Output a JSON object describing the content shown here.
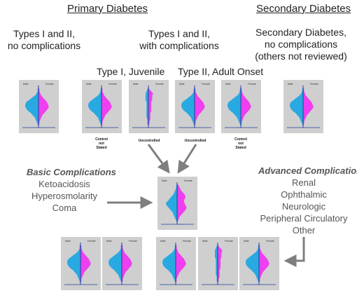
{
  "headings": {
    "primary": "Primary Diabetes",
    "secondary": "Secondary Diabetes"
  },
  "groups": {
    "no_complications": [
      "Types I and II,",
      "no complications"
    ],
    "with_complications": [
      "Types I and II,",
      "with complications"
    ],
    "secondary": [
      "Secondary Diabetes,",
      "no complications",
      "(others not reviewed)"
    ]
  },
  "subheads": {
    "type1": "Type I, Juvenile",
    "type2": "Type II, Adult Onset"
  },
  "control_labels": {
    "type1_not_stated": [
      "Control",
      "not",
      "Stated"
    ],
    "type1_uncontrolled": [
      "Uncontrolled"
    ],
    "type2_uncontrolled": [
      "Uncontrolled"
    ],
    "type2_not_stated": [
      "Control",
      "not",
      "Stated"
    ]
  },
  "basic": {
    "title": "Basic Complications",
    "items": [
      "Ketoacidosis",
      "Hyperosmolarity",
      "Coma"
    ]
  },
  "advanced": {
    "title": "Advanced Complications",
    "items": [
      "Renal",
      "Ophthalmic",
      "Neurologic",
      "Peripheral Circulatory",
      "Other"
    ]
  },
  "mini_chart_legend": {
    "male": "Male",
    "female": "Female"
  },
  "colors": {
    "male": "#29a9e1",
    "female": "#ee3ff0",
    "axis": "#1f3f9a",
    "panel": "#cfcfcf",
    "arrow": "#7f7f7f"
  }
}
